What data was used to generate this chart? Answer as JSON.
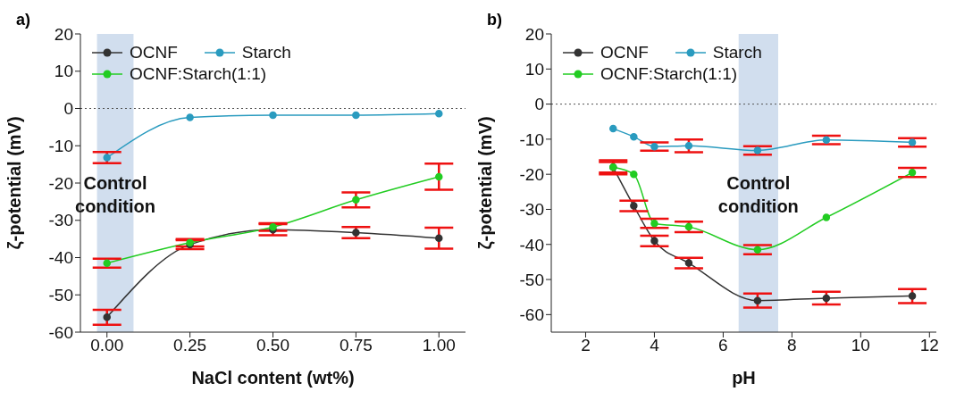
{
  "chart_data": [
    {
      "type": "line",
      "title": "a)",
      "xlabel": "NaCl content (wt%)",
      "ylabel": "ζ-potential (mV)",
      "x": [
        0,
        0.25,
        0.5,
        0.75,
        1
      ],
      "xlim": [
        -0.08,
        1.08
      ],
      "xticks": [
        {
          "value": 0,
          "label": "0.00"
        },
        {
          "value": 0.25,
          "label": "0.25"
        },
        {
          "value": 0.5,
          "label": "0.50"
        },
        {
          "value": 0.75,
          "label": "0.75"
        },
        {
          "value": 1,
          "label": "1.00"
        }
      ],
      "ylim": [
        -60,
        20
      ],
      "yticks": [
        -60,
        -50,
        -40,
        -30,
        -20,
        -10,
        0,
        10,
        20
      ],
      "marker": "circle",
      "legend": "top left",
      "grid": false,
      "series": [
        {
          "name": "OCNF",
          "color": "#333333",
          "values": [
            -56,
            -36.5,
            -32.5,
            -33.3,
            -34.8
          ],
          "errors": [
            2,
            1.2,
            1.5,
            1.5,
            2.8
          ]
        },
        {
          "name": "Starch",
          "color": "#2a9bbf",
          "values": [
            -13.2,
            -2.4,
            -1.8,
            -1.8,
            -1.4
          ],
          "errors": [
            1.5,
            null,
            null,
            null,
            null
          ]
        },
        {
          "name": "OCNF:Starch(1:1)",
          "color": "#22cc22",
          "values": [
            -41.5,
            -36,
            -31.8,
            -24.5,
            -18.3
          ],
          "errors": [
            1.2,
            1,
            1,
            2,
            3.5
          ]
        }
      ],
      "ref_lines": [
        {
          "axis": "y",
          "value": 0,
          "line_style": "dotted",
          "color": "#555555"
        }
      ],
      "bands": [
        {
          "axis": "x",
          "from": -0.03,
          "to": 0.08,
          "label": "Control condition",
          "color": "#c5d6ea"
        }
      ]
    },
    {
      "type": "line",
      "title": "b)",
      "xlabel": "pH",
      "ylabel": "ζ-potential (mV)",
      "x": [
        2.8,
        3.4,
        4,
        5,
        7,
        9,
        11.5
      ],
      "xlim": [
        1,
        12.2
      ],
      "xticks": [
        2,
        4,
        6,
        8,
        10,
        12
      ],
      "ylim": [
        -65,
        20
      ],
      "yticks": [
        -60,
        -50,
        -40,
        -30,
        -20,
        -10,
        0,
        10,
        20
      ],
      "marker": "circle",
      "legend": "top left",
      "grid": false,
      "series": [
        {
          "name": "OCNF",
          "color": "#333333",
          "values": [
            -18,
            -29,
            -39,
            -45.3,
            -56,
            -55.3,
            -54.7
          ],
          "errors": [
            2,
            1.5,
            1.5,
            1.5,
            2,
            1.8,
            2
          ]
        },
        {
          "name": "Starch",
          "color": "#2a9bbf",
          "values": [
            -7,
            -9.3,
            -12.1,
            -11.9,
            -13.2,
            -10.2,
            -10.9
          ],
          "errors": [
            null,
            null,
            1.2,
            1.8,
            1.2,
            1.2,
            1.2
          ]
        },
        {
          "name": "OCNF:Starch(1:1)",
          "color": "#22cc22",
          "values": [
            -18,
            -20,
            -34,
            -35,
            -41.5,
            -32.3,
            -19.5
          ],
          "errors": [
            1.5,
            null,
            1.3,
            1.5,
            1.3,
            null,
            1.3
          ]
        }
      ],
      "ref_lines": [
        {
          "axis": "y",
          "value": 0,
          "line_style": "dotted",
          "color": "#555555"
        }
      ],
      "bands": [
        {
          "axis": "x",
          "from": 6.45,
          "to": 7.6,
          "label": "Control condition",
          "color": "#c5d6ea"
        }
      ]
    }
  ]
}
